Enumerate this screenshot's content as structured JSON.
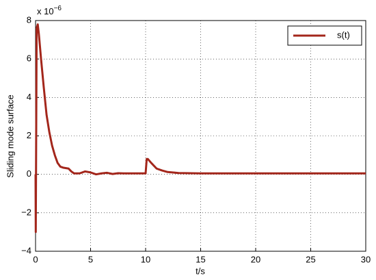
{
  "chart_data": {
    "type": "line",
    "xlabel": "t/s",
    "ylabel": "Sliding mode surface",
    "y_multiplier": {
      "base": "x 10",
      "exponent": "−6"
    },
    "x": [
      0,
      0.02,
      0.1,
      0.2,
      0.3,
      0.5,
      0.75,
      1,
      1.25,
      1.5,
      1.75,
      2,
      2.25,
      2.5,
      3,
      3.25,
      3.5,
      4,
      4.5,
      5,
      5.5,
      6,
      6.5,
      7,
      7.5,
      8,
      9,
      10,
      10.1,
      10.2,
      10.5,
      11,
      11.5,
      12,
      13,
      15,
      20,
      25,
      30
    ],
    "series": [
      {
        "name": "s(t)",
        "color": "#a3261b",
        "values": [
          0,
          -3,
          7.6,
          7.8,
          7.3,
          6,
          4.5,
          3.1,
          2.2,
          1.5,
          1,
          0.6,
          0.4,
          0.35,
          0.3,
          0.15,
          0.05,
          0.05,
          0.15,
          0.1,
          0,
          0.05,
          0.08,
          0.02,
          0.06,
          0.05,
          0.05,
          0.05,
          0.8,
          0.8,
          0.6,
          0.3,
          0.2,
          0.12,
          0.07,
          0.05,
          0.05,
          0.05,
          0.05
        ]
      }
    ],
    "xlim": [
      0,
      30
    ],
    "xticks": [
      0,
      5,
      10,
      15,
      20,
      25,
      30
    ],
    "ylim": [
      -4,
      8
    ],
    "yticks": [
      {
        "value": -4,
        "label": "−4"
      },
      {
        "value": -2,
        "label": "−2"
      },
      0,
      2,
      4,
      6,
      8
    ],
    "grid": true,
    "legend": "upper right"
  }
}
